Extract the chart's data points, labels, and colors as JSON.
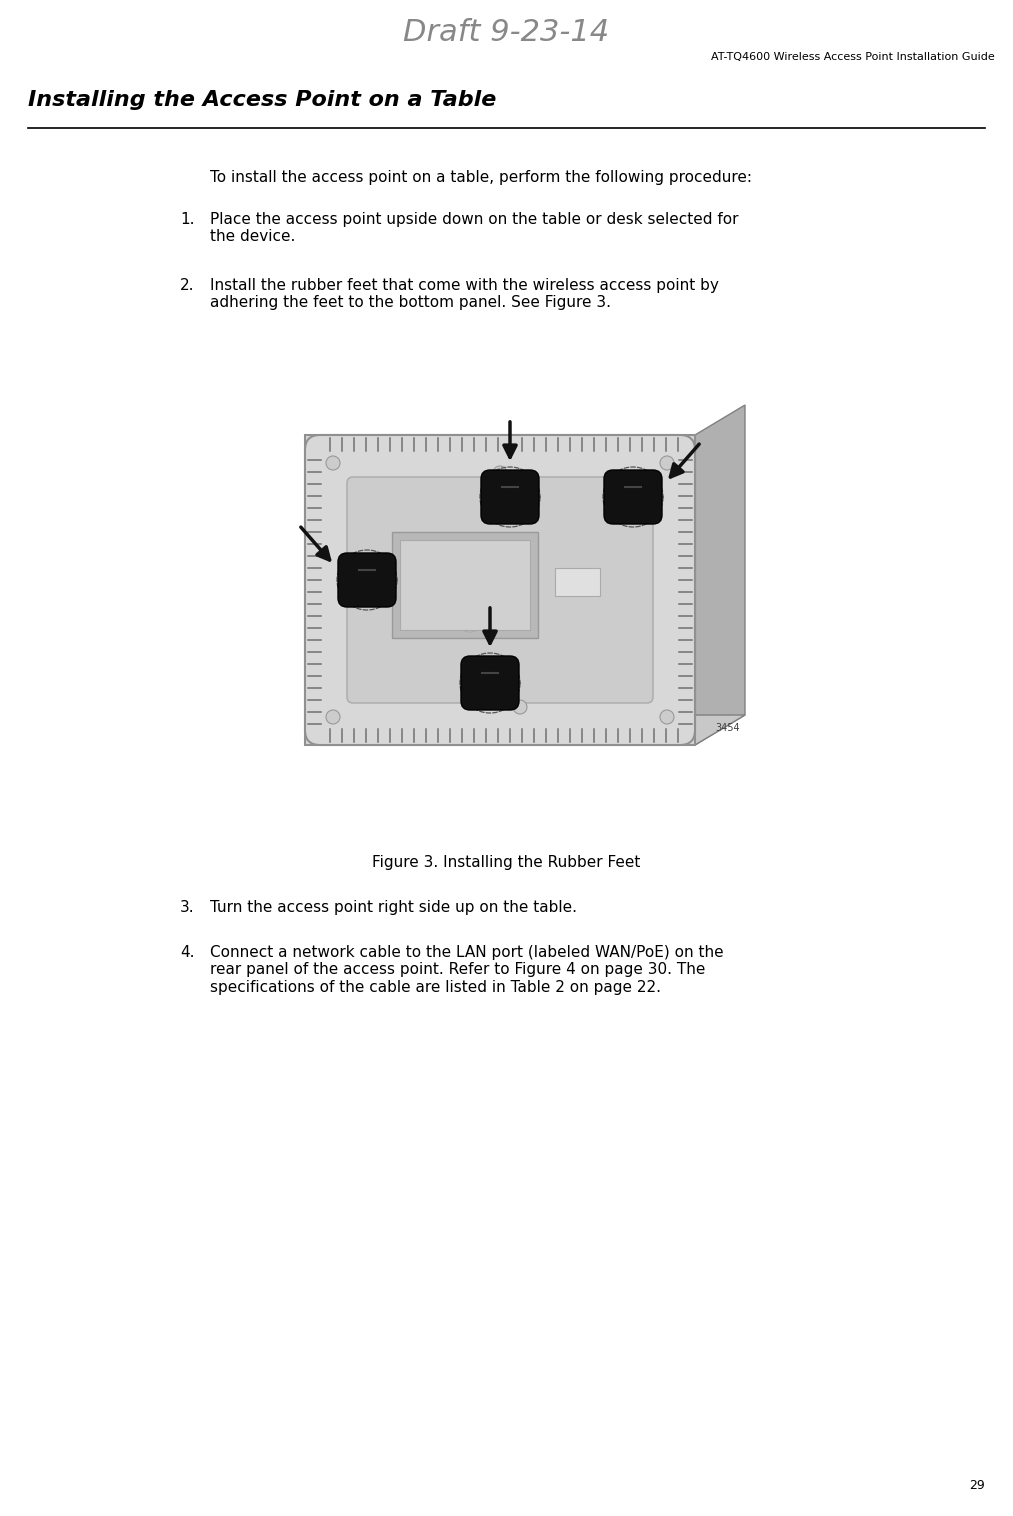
{
  "draft_watermark": "Draft 9-23-14",
  "header_right": "AT-TQ4600 Wireless Access Point Installation Guide",
  "section_title": "Installing the Access Point on a Table",
  "intro_text": "To install the access point on a table, perform the following procedure:",
  "steps": [
    "Place the access point upside down on the table or desk selected for\nthe device.",
    "Install the rubber feet that come with the wireless access point by\nadhering the feet to the bottom panel. See Figure 3.",
    "Turn the access point right side up on the table.",
    "Connect a network cable to the LAN port (labeled WAN/PoE) on the\nrear panel of the access point. Refer to Figure 4 on page 30. The\nspecifications of the cable are listed in Table 2 on page 22."
  ],
  "figure_caption": "Figure 3. Installing the Rubber Feet",
  "figure_number": "3454",
  "page_number": "29",
  "bg_color": "#ffffff",
  "text_color": "#000000",
  "header_color": "#888888",
  "section_title_fontsize": 16,
  "body_fontsize": 11,
  "header_fontsize": 8,
  "watermark_fontsize": 22,
  "page_num_fontsize": 9
}
